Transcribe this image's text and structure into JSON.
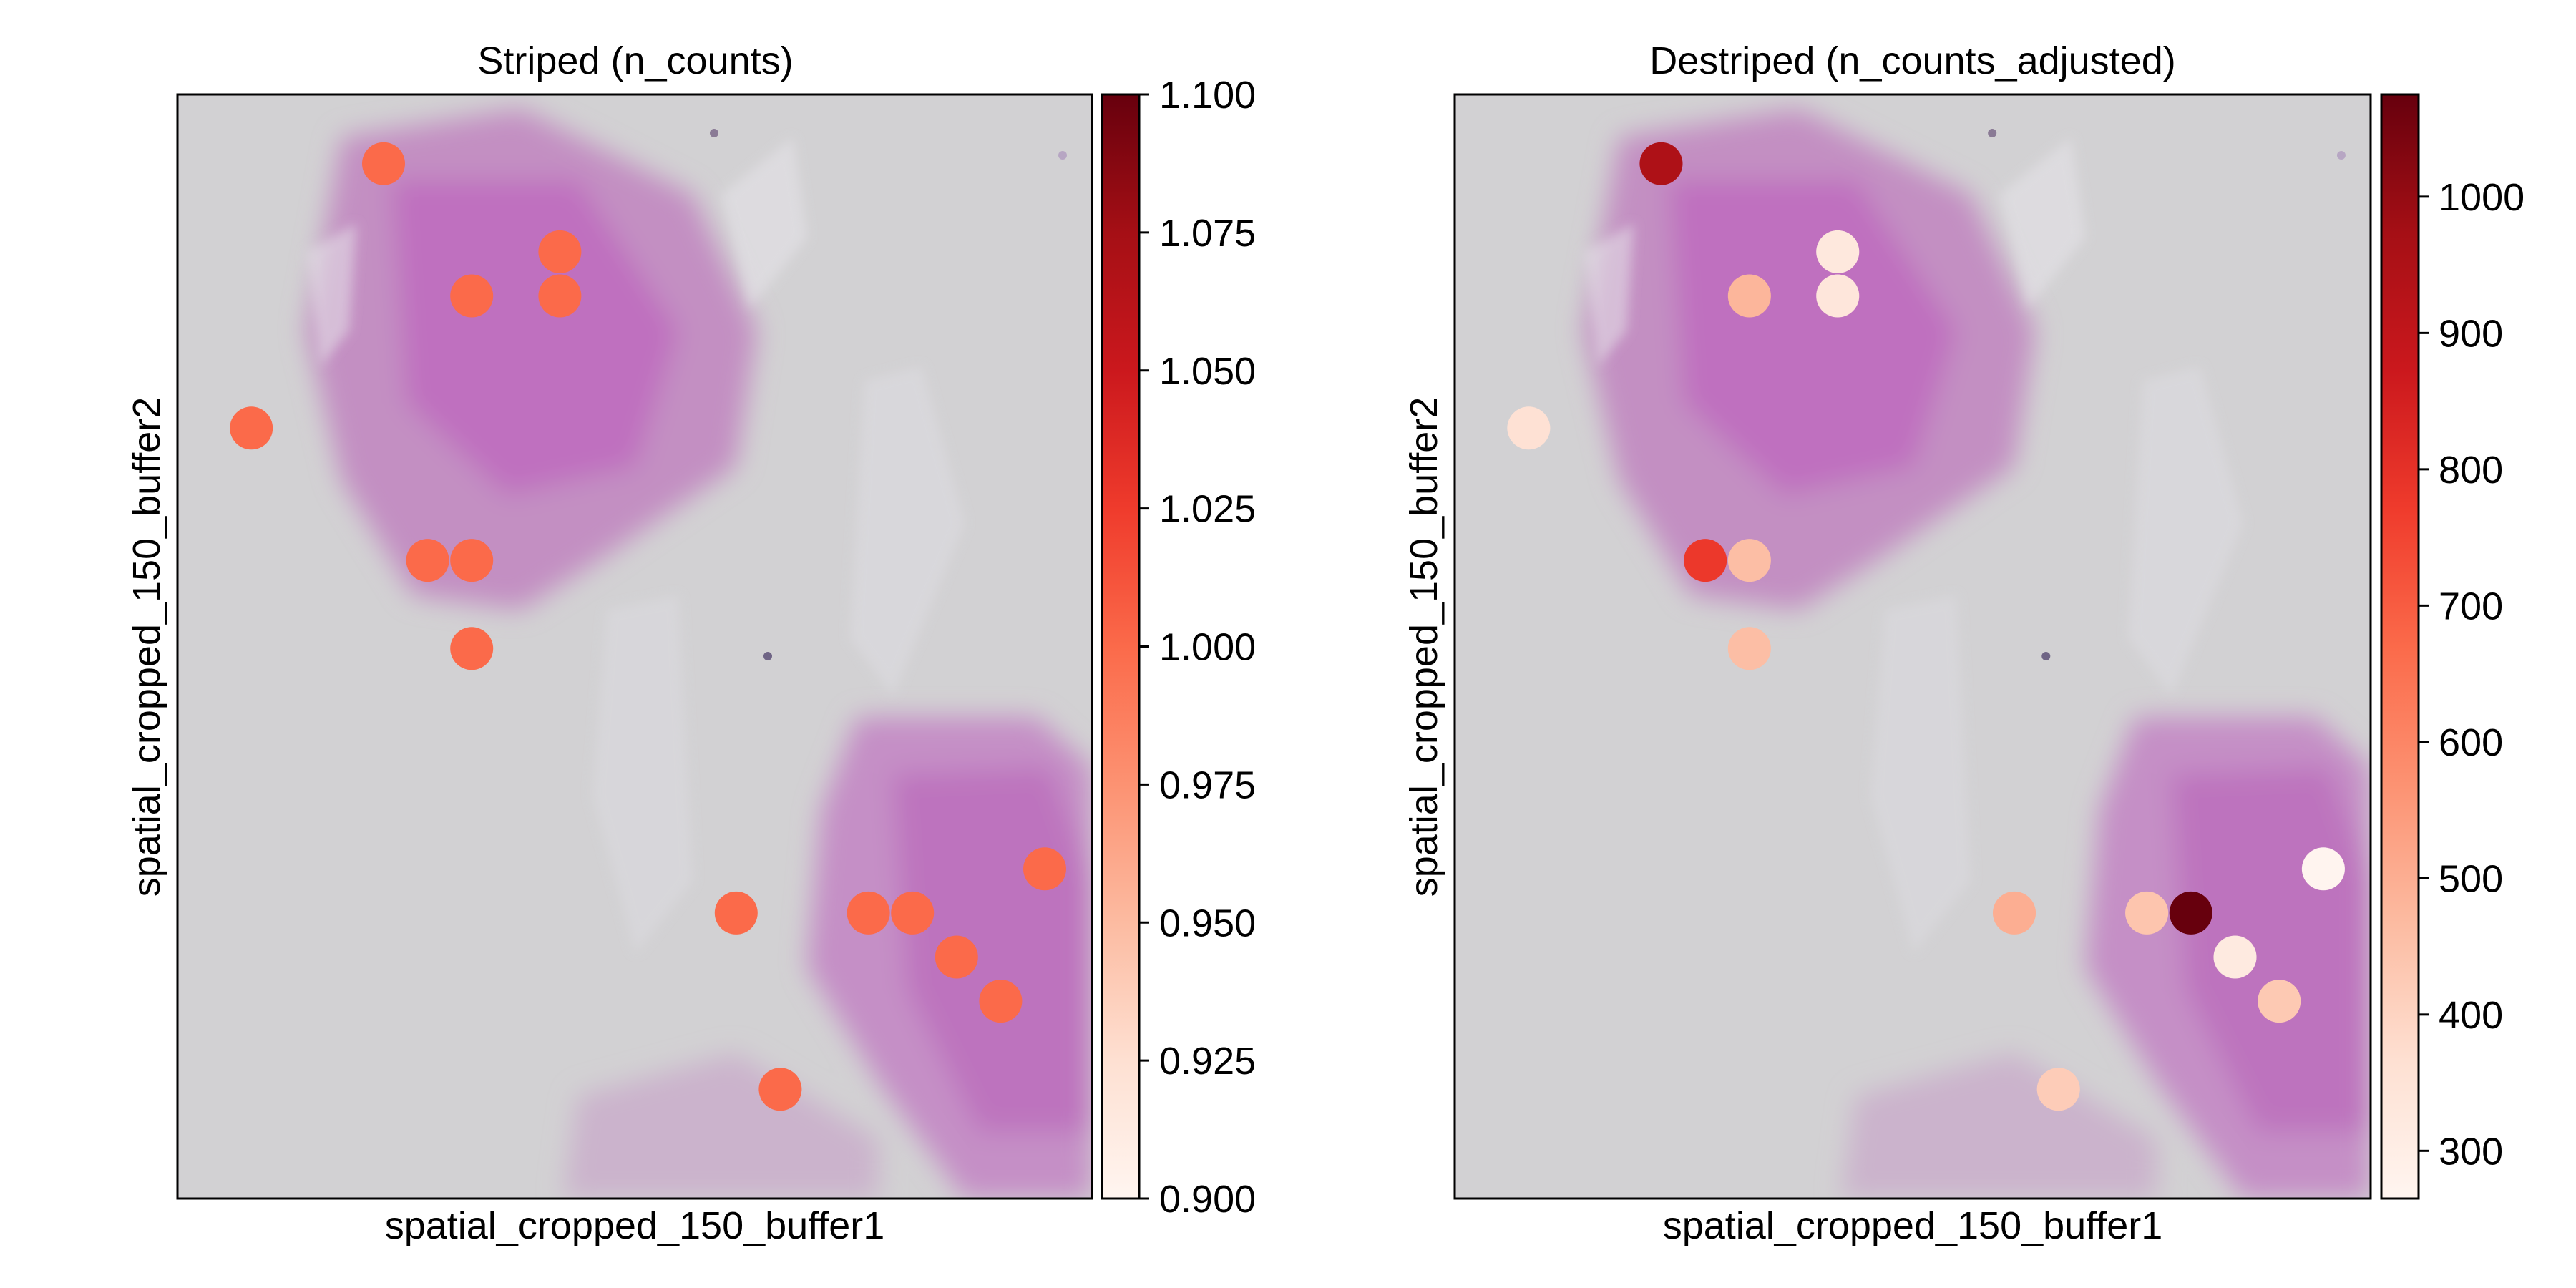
{
  "chart_data": [
    {
      "type": "scatter",
      "title": "Striped (n_counts)",
      "xlabel": "spatial_cropped_150_buffer1",
      "ylabel": "spatial_cropped_150_buffer2",
      "colormap": "Reds",
      "colorbar": {
        "min": 0.9,
        "max": 1.1,
        "ticks": [
          "1.100",
          "1.075",
          "1.050",
          "1.025",
          "1.000",
          "0.975",
          "0.950",
          "0.925",
          "0.900"
        ]
      },
      "background": "tissue H&E image (grey with pink/purple stained tissue)",
      "grid": false,
      "points": [
        {
          "x": 5,
          "y": 24,
          "value": 1.0
        },
        {
          "x": 2,
          "y": 18,
          "value": 1.0
        },
        {
          "x": 7,
          "y": 21,
          "value": 1.0
        },
        {
          "x": 9,
          "y": 22,
          "value": 1.0
        },
        {
          "x": 9,
          "y": 21,
          "value": 1.0
        },
        {
          "x": 6,
          "y": 15,
          "value": 1.0
        },
        {
          "x": 7,
          "y": 15,
          "value": 1.0
        },
        {
          "x": 7,
          "y": 13,
          "value": 1.0
        },
        {
          "x": 13,
          "y": 7,
          "value": 1.0
        },
        {
          "x": 16,
          "y": 7,
          "value": 1.0
        },
        {
          "x": 17,
          "y": 7,
          "value": 1.0
        },
        {
          "x": 20,
          "y": 8,
          "value": 1.0
        },
        {
          "x": 18,
          "y": 6,
          "value": 1.0
        },
        {
          "x": 19,
          "y": 5,
          "value": 1.0
        },
        {
          "x": 14,
          "y": 3,
          "value": 1.0
        }
      ]
    },
    {
      "type": "scatter",
      "title": "Destriped (n_counts_adjusted)",
      "xlabel": "spatial_cropped_150_buffer1",
      "ylabel": "spatial_cropped_150_buffer2",
      "colormap": "Reds",
      "colorbar": {
        "min": 265,
        "max": 1075,
        "ticks": [
          "1000",
          "900",
          "800",
          "700",
          "600",
          "500",
          "400",
          "300"
        ]
      },
      "background": "tissue H&E image (grey with pink/purple stained tissue)",
      "grid": false,
      "points": [
        {
          "x": 5,
          "y": 24,
          "value": 950
        },
        {
          "x": 2,
          "y": 18,
          "value": 360
        },
        {
          "x": 7,
          "y": 21,
          "value": 480
        },
        {
          "x": 9,
          "y": 22,
          "value": 330
        },
        {
          "x": 9,
          "y": 21,
          "value": 335
        },
        {
          "x": 6,
          "y": 15,
          "value": 780
        },
        {
          "x": 7,
          "y": 15,
          "value": 460
        },
        {
          "x": 7,
          "y": 13,
          "value": 460
        },
        {
          "x": 13,
          "y": 7,
          "value": 500
        },
        {
          "x": 16,
          "y": 7,
          "value": 440
        },
        {
          "x": 17,
          "y": 7,
          "value": 1075
        },
        {
          "x": 20,
          "y": 8,
          "value": 270
        },
        {
          "x": 18,
          "y": 6,
          "value": 320
        },
        {
          "x": 19,
          "y": 5,
          "value": 430
        },
        {
          "x": 14,
          "y": 3,
          "value": 420
        }
      ]
    }
  ]
}
